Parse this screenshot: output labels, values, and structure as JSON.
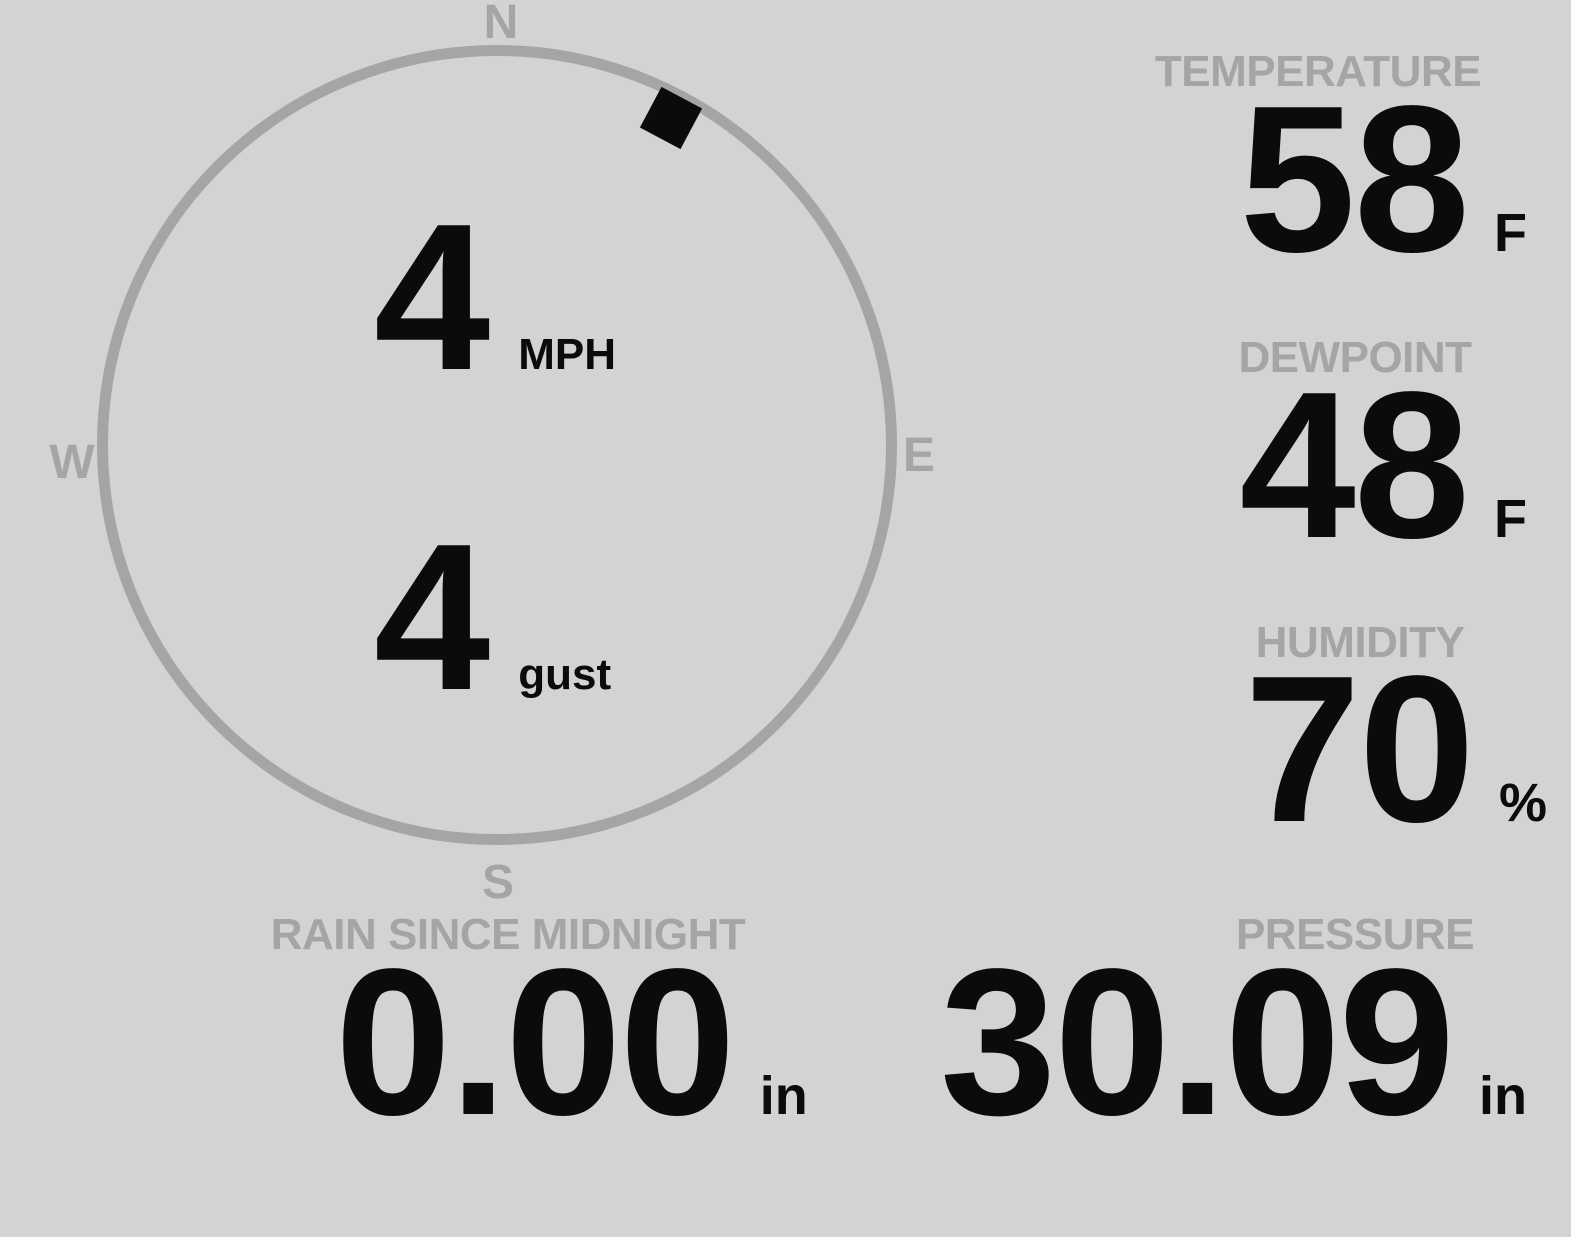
{
  "colors": {
    "background": "#d3d3d3",
    "muted_gray": "#a5a5a5",
    "value_black": "#0b0b0b"
  },
  "wind": {
    "compass": {
      "north": "N",
      "south": "S",
      "east": "E",
      "west": "W"
    },
    "speed_value": "4",
    "speed_unit": "MPH",
    "gust_value": "4",
    "gust_unit": "gust",
    "direction_deg": 28
  },
  "metrics": {
    "temperature": {
      "label": "TEMPERATURE",
      "value": "58",
      "unit": "F"
    },
    "dewpoint": {
      "label": "DEWPOINT",
      "value": "48",
      "unit": "F"
    },
    "humidity": {
      "label": "HUMIDITY",
      "value": "70",
      "unit": "%"
    },
    "rain": {
      "label": "RAIN SINCE MIDNIGHT",
      "value": "0.00",
      "unit": "in"
    },
    "pressure": {
      "label": "PRESSURE",
      "value": "30.09",
      "unit": "in"
    }
  }
}
